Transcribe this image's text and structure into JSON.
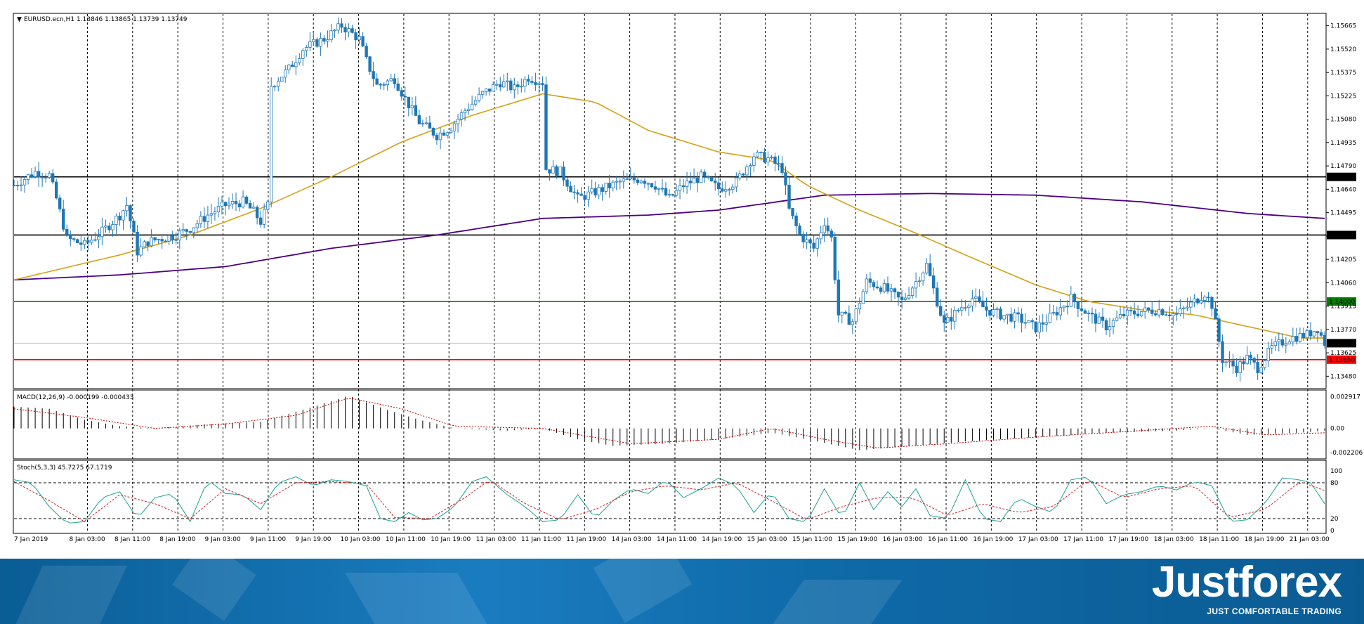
{
  "chart_data": {
    "type": "candlestick",
    "symbol_header": "EURUSD.ecn,H1  1.13846 1.13865 1.13739 1.13749",
    "price_ticks": [
      "1.15665",
      "1.15520",
      "1.15375",
      "1.15225",
      "1.15080",
      "1.14935",
      "1.14790",
      "1.14640",
      "1.14495",
      "1.14350",
      "1.14205",
      "1.14060",
      "1.13915",
      "1.13770",
      "1.13625",
      "1.13480"
    ],
    "ylim": [
      1.1348,
      1.1573
    ],
    "time_labels": [
      "7 Jan 2019",
      "8 Jan 03:00",
      "8 Jan 11:00",
      "8 Jan 19:00",
      "9 Jan 03:00",
      "9 Jan 11:00",
      "9 Jan 19:00",
      "10 Jan 03:00",
      "10 Jan 11:00",
      "10 Jan 19:00",
      "11 Jan 03:00",
      "11 Jan 11:00",
      "11 Jan 19:00",
      "14 Jan 03:00",
      "14 Jan 11:00",
      "14 Jan 19:00",
      "15 Jan 03:00",
      "15 Jan 11:00",
      "15 Jan 19:00",
      "16 Jan 03:00",
      "16 Jan 11:00",
      "16 Jan 19:00",
      "17 Jan 03:00",
      "17 Jan 11:00",
      "17 Jan 19:00",
      "18 Jan 03:00",
      "18 Jan 11:00",
      "18 Jan 19:00",
      "21 Jan 03:00"
    ],
    "horizontal_levels": [
      {
        "price": 1.1475,
        "label": "1.14750",
        "color": "#000000"
      },
      {
        "price": 1.144,
        "label": "1.14400",
        "color": "#000000"
      },
      {
        "price": 1.14,
        "label": "1.14000",
        "color": "#008000"
      },
      {
        "price": 1.1365,
        "label": "1.13650",
        "color": "#ff0000"
      }
    ],
    "last_price": {
      "price": 1.13749,
      "label": "1.13749"
    },
    "close_path": [
      [
        0,
        1.147
      ],
      [
        6,
        1.1478
      ],
      [
        10,
        1.1476
      ],
      [
        12,
        1.1462
      ],
      [
        15,
        1.1438
      ],
      [
        20,
        1.1434
      ],
      [
        25,
        1.1442
      ],
      [
        30,
        1.1452
      ],
      [
        32,
        1.1458
      ],
      [
        35,
        1.143
      ],
      [
        38,
        1.1436
      ],
      [
        42,
        1.1438
      ],
      [
        46,
        1.144
      ],
      [
        50,
        1.1444
      ],
      [
        55,
        1.1452
      ],
      [
        60,
        1.1458
      ],
      [
        65,
        1.146
      ],
      [
        68,
        1.1454
      ],
      [
        70,
        1.1448
      ],
      [
        72,
        1.1458
      ],
      [
        73,
        1.153
      ],
      [
        78,
        1.154
      ],
      [
        82,
        1.1552
      ],
      [
        88,
        1.1558
      ],
      [
        93,
        1.1566
      ],
      [
        98,
        1.1558
      ],
      [
        100,
        1.1545
      ],
      [
        103,
        1.153
      ],
      [
        108,
        1.1534
      ],
      [
        111,
        1.1522
      ],
      [
        115,
        1.1508
      ],
      [
        120,
        1.15
      ],
      [
        124,
        1.1505
      ],
      [
        128,
        1.1515
      ],
      [
        133,
        1.1525
      ],
      [
        138,
        1.1532
      ],
      [
        142,
        1.1528
      ],
      [
        146,
        1.1535
      ],
      [
        150,
        1.1532
      ],
      [
        151,
        1.148
      ],
      [
        155,
        1.1478
      ],
      [
        160,
        1.1462
      ],
      [
        165,
        1.1466
      ],
      [
        172,
        1.1472
      ],
      [
        178,
        1.1474
      ],
      [
        182,
        1.147
      ],
      [
        186,
        1.1462
      ],
      [
        190,
        1.147
      ],
      [
        195,
        1.1475
      ],
      [
        200,
        1.1468
      ],
      [
        205,
        1.1472
      ],
      [
        210,
        1.1488
      ],
      [
        214,
        1.1486
      ],
      [
        218,
        1.148
      ],
      [
        220,
        1.1455
      ],
      [
        223,
        1.144
      ],
      [
        227,
        1.1432
      ],
      [
        230,
        1.1448
      ],
      [
        232,
        1.1438
      ],
      [
        234,
        1.1392
      ],
      [
        238,
        1.1388
      ],
      [
        242,
        1.1412
      ],
      [
        247,
        1.1408
      ],
      [
        252,
        1.14
      ],
      [
        256,
        1.1412
      ],
      [
        259,
        1.1422
      ],
      [
        262,
        1.14
      ],
      [
        264,
        1.1386
      ],
      [
        268,
        1.1395
      ],
      [
        272,
        1.1402
      ],
      [
        276,
        1.1395
      ],
      [
        280,
        1.1392
      ],
      [
        285,
        1.139
      ],
      [
        290,
        1.1384
      ],
      [
        295,
        1.1392
      ],
      [
        300,
        1.1402
      ],
      [
        305,
        1.1392
      ],
      [
        310,
        1.1385
      ],
      [
        315,
        1.1392
      ],
      [
        320,
        1.1394
      ],
      [
        325,
        1.1395
      ],
      [
        330,
        1.1392
      ],
      [
        335,
        1.14
      ],
      [
        338,
        1.1405
      ],
      [
        340,
        1.1398
      ],
      [
        343,
        1.1365
      ],
      [
        347,
        1.136
      ],
      [
        350,
        1.1366
      ],
      [
        353,
        1.136
      ],
      [
        357,
        1.1372
      ],
      [
        362,
        1.1378
      ],
      [
        367,
        1.138
      ],
      [
        370,
        1.1384
      ],
      [
        372,
        1.1375
      ]
    ],
    "ma_fast": {
      "name": "MA fast",
      "color": "#d4a017",
      "points": [
        [
          0,
          1.1413
        ],
        [
          30,
          1.1428
        ],
        [
          50,
          1.144
        ],
        [
          70,
          1.1456
        ],
        [
          90,
          1.1475
        ],
        [
          110,
          1.1496
        ],
        [
          130,
          1.1512
        ],
        [
          150,
          1.1525
        ],
        [
          165,
          1.152
        ],
        [
          180,
          1.1503
        ],
        [
          200,
          1.149
        ],
        [
          215,
          1.1485
        ],
        [
          225,
          1.147
        ],
        [
          240,
          1.1455
        ],
        [
          255,
          1.1442
        ],
        [
          270,
          1.1428
        ],
        [
          290,
          1.141
        ],
        [
          305,
          1.14
        ],
        [
          320,
          1.1395
        ],
        [
          335,
          1.1392
        ],
        [
          350,
          1.1385
        ],
        [
          365,
          1.1378
        ],
        [
          372,
          1.1378
        ]
      ]
    },
    "ma_slow": {
      "name": "MA slow",
      "color": "#4b0082",
      "points": [
        [
          0,
          1.1413
        ],
        [
          30,
          1.1416
        ],
        [
          60,
          1.1421
        ],
        [
          90,
          1.1432
        ],
        [
          120,
          1.144
        ],
        [
          150,
          1.145
        ],
        [
          180,
          1.1452
        ],
        [
          200,
          1.1455
        ],
        [
          230,
          1.1464
        ],
        [
          260,
          1.1465
        ],
        [
          290,
          1.1464
        ],
        [
          320,
          1.146
        ],
        [
          350,
          1.1453
        ],
        [
          372,
          1.145
        ]
      ]
    },
    "macd": {
      "label": "MACD(12,26,9) -0.000199 -0.000433",
      "ticks": [
        "0.002917",
        "0.00",
        "-0.002206"
      ],
      "ylim": [
        -0.0026,
        0.0032
      ],
      "hist_points": [
        [
          0,
          0.002
        ],
        [
          10,
          0.0018
        ],
        [
          20,
          0.0008
        ],
        [
          30,
          0.0002
        ],
        [
          40,
          0.0
        ],
        [
          55,
          0.0004
        ],
        [
          70,
          0.0006
        ],
        [
          85,
          0.002
        ],
        [
          95,
          0.003
        ],
        [
          105,
          0.0018
        ],
        [
          115,
          0.0008
        ],
        [
          125,
          0.0
        ],
        [
          140,
          -0.0002
        ],
        [
          150,
          0.0
        ],
        [
          160,
          -0.001
        ],
        [
          170,
          -0.0016
        ],
        [
          185,
          -0.0014
        ],
        [
          200,
          -0.001
        ],
        [
          215,
          -0.0004
        ],
        [
          225,
          -0.001
        ],
        [
          240,
          -0.002
        ],
        [
          255,
          -0.0016
        ],
        [
          270,
          -0.0012
        ],
        [
          290,
          -0.0008
        ],
        [
          310,
          -0.0004
        ],
        [
          330,
          -0.0002
        ],
        [
          340,
          0.0
        ],
        [
          350,
          -0.0006
        ],
        [
          365,
          -0.0004
        ],
        [
          372,
          -0.0002
        ]
      ],
      "signal_points": [
        [
          0,
          0.0018
        ],
        [
          20,
          0.001
        ],
        [
          40,
          0.0
        ],
        [
          60,
          0.0004
        ],
        [
          80,
          0.0012
        ],
        [
          95,
          0.0028
        ],
        [
          110,
          0.0018
        ],
        [
          125,
          0.0002
        ],
        [
          150,
          0.0
        ],
        [
          175,
          -0.0014
        ],
        [
          200,
          -0.001
        ],
        [
          215,
          0.0
        ],
        [
          230,
          -0.001
        ],
        [
          245,
          -0.0018
        ],
        [
          265,
          -0.0014
        ],
        [
          290,
          -0.0008
        ],
        [
          320,
          -0.0002
        ],
        [
          340,
          0.0002
        ],
        [
          355,
          -0.0006
        ],
        [
          372,
          -0.0004
        ]
      ]
    },
    "stoch": {
      "label": "Stoch(5,3,3) 45.7275 67.1719",
      "ticks": [
        "100",
        "80",
        "20",
        "0"
      ],
      "main_points": [
        [
          0,
          85
        ],
        [
          5,
          80
        ],
        [
          10,
          40
        ],
        [
          15,
          12
        ],
        [
          20,
          15
        ],
        [
          25,
          55
        ],
        [
          30,
          65
        ],
        [
          35,
          20
        ],
        [
          40,
          55
        ],
        [
          45,
          62
        ],
        [
          50,
          15
        ],
        [
          55,
          85
        ],
        [
          60,
          62
        ],
        [
          65,
          60
        ],
        [
          70,
          35
        ],
        [
          75,
          80
        ],
        [
          80,
          90
        ],
        [
          85,
          75
        ],
        [
          90,
          85
        ],
        [
          95,
          82
        ],
        [
          100,
          75
        ],
        [
          104,
          20
        ],
        [
          108,
          15
        ],
        [
          112,
          30
        ],
        [
          116,
          18
        ],
        [
          120,
          20
        ],
        [
          125,
          40
        ],
        [
          130,
          82
        ],
        [
          134,
          90
        ],
        [
          140,
          60
        ],
        [
          145,
          40
        ],
        [
          150,
          15
        ],
        [
          155,
          18
        ],
        [
          160,
          60
        ],
        [
          165,
          20
        ],
        [
          170,
          50
        ],
        [
          175,
          70
        ],
        [
          180,
          62
        ],
        [
          185,
          85
        ],
        [
          190,
          55
        ],
        [
          195,
          70
        ],
        [
          200,
          88
        ],
        [
          205,
          75
        ],
        [
          210,
          30
        ],
        [
          215,
          65
        ],
        [
          220,
          20
        ],
        [
          225,
          14
        ],
        [
          230,
          70
        ],
        [
          235,
          20
        ],
        [
          240,
          80
        ],
        [
          244,
          35
        ],
        [
          248,
          65
        ],
        [
          252,
          40
        ],
        [
          256,
          70
        ],
        [
          260,
          25
        ],
        [
          265,
          20
        ],
        [
          270,
          85
        ],
        [
          275,
          20
        ],
        [
          280,
          15
        ],
        [
          285,
          55
        ],
        [
          290,
          40
        ],
        [
          295,
          30
        ],
        [
          300,
          85
        ],
        [
          305,
          90
        ],
        [
          310,
          45
        ],
        [
          315,
          60
        ],
        [
          320,
          65
        ],
        [
          325,
          75
        ],
        [
          330,
          68
        ],
        [
          335,
          82
        ],
        [
          340,
          75
        ],
        [
          345,
          15
        ],
        [
          350,
          18
        ],
        [
          355,
          45
        ],
        [
          360,
          88
        ],
        [
          365,
          85
        ],
        [
          368,
          80
        ],
        [
          372,
          45
        ]
      ],
      "signal_points": [
        [
          0,
          82
        ],
        [
          10,
          50
        ],
        [
          20,
          15
        ],
        [
          30,
          60
        ],
        [
          40,
          45
        ],
        [
          50,
          20
        ],
        [
          60,
          70
        ],
        [
          70,
          45
        ],
        [
          80,
          80
        ],
        [
          90,
          82
        ],
        [
          100,
          78
        ],
        [
          108,
          22
        ],
        [
          118,
          20
        ],
        [
          128,
          55
        ],
        [
          135,
          85
        ],
        [
          145,
          45
        ],
        [
          155,
          18
        ],
        [
          165,
          35
        ],
        [
          175,
          65
        ],
        [
          185,
          75
        ],
        [
          195,
          68
        ],
        [
          205,
          80
        ],
        [
          215,
          50
        ],
        [
          225,
          18
        ],
        [
          235,
          40
        ],
        [
          245,
          55
        ],
        [
          255,
          55
        ],
        [
          265,
          25
        ],
        [
          275,
          45
        ],
        [
          285,
          30
        ],
        [
          295,
          40
        ],
        [
          305,
          85
        ],
        [
          315,
          55
        ],
        [
          325,
          70
        ],
        [
          335,
          75
        ],
        [
          345,
          22
        ],
        [
          355,
          35
        ],
        [
          365,
          82
        ],
        [
          372,
          67
        ]
      ]
    },
    "xlim": [
      0,
      372
    ]
  },
  "brand": {
    "name": "Justforex",
    "tagline": "JUST COMFORTABLE TRADING"
  }
}
